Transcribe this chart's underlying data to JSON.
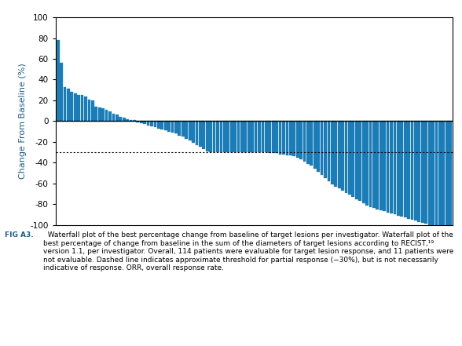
{
  "ylabel": "Change From Baseline (%)",
  "ylim": [
    -100,
    100
  ],
  "yticks": [
    -100,
    -80,
    -60,
    -40,
    -20,
    0,
    20,
    40,
    60,
    80,
    100
  ],
  "dashed_line_y": -30,
  "bar_color": "#1b7db8",
  "background_color": "#ffffff",
  "ylabel_color": "#1b5e8a",
  "caption_bold": "FIG A3.",
  "caption_text": "  Waterfall plot of the best percentage change from baseline of target lesions per investigator. Waterfall plot of the best percentage of change from baseline in the sum of the diameters of target lesions according to RECIST,¹⁹ version 1.1, per investigator. Overall, 114 patients were evaluable for target lesion response, and 11 patients were not evaluable. Dashed line indicates approximate threshold for partial response (−30%), but is not necessarily indicative of response. ORR, overall response rate.",
  "caption_bold_color": "#1b5e8a",
  "values": [
    78,
    56,
    33,
    31,
    28,
    27,
    25,
    25,
    24,
    21,
    20,
    14,
    13,
    12,
    11,
    9,
    7,
    6,
    4,
    3,
    2,
    1,
    1,
    -1,
    -2,
    -3,
    -4,
    -5,
    -6,
    -7,
    -8,
    -9,
    -10,
    -11,
    -12,
    -14,
    -15,
    -17,
    -19,
    -21,
    -23,
    -25,
    -27,
    -29,
    -30,
    -30,
    -30,
    -30,
    -30,
    -30,
    -30,
    -30,
    -30,
    -30,
    -30,
    -30,
    -30,
    -30,
    -30,
    -30,
    -30,
    -31,
    -31,
    -31,
    -32,
    -32,
    -33,
    -33,
    -34,
    -35,
    -37,
    -39,
    -41,
    -43,
    -46,
    -49,
    -52,
    -55,
    -58,
    -61,
    -63,
    -65,
    -67,
    -69,
    -71,
    -73,
    -75,
    -77,
    -79,
    -81,
    -83,
    -84,
    -85,
    -86,
    -87,
    -88,
    -89,
    -90,
    -91,
    -92,
    -93,
    -94,
    -95,
    -96,
    -97,
    -98,
    -99,
    -100,
    -100,
    -100,
    -100,
    -100,
    -100,
    -100
  ]
}
